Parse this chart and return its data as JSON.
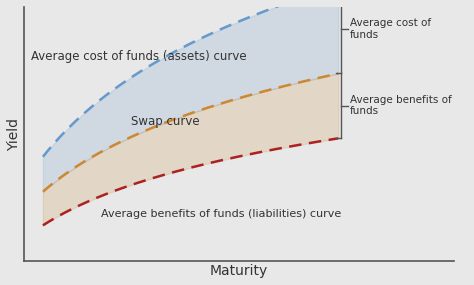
{
  "title": "",
  "xlabel": "Maturity",
  "ylabel": "Yield",
  "background_color": "#e8e8e8",
  "plot_bg_color": "#e8e8e8",
  "curve_top_color": "#6699cc",
  "curve_mid_color": "#cc8833",
  "curve_bot_color": "#aa2222",
  "curve_top_label": "Average cost of funds (assets) curve",
  "curve_mid_label": "Swap curve",
  "curve_bot_label": "Average benefits of funds (liabilities) curve",
  "right_label_top": "Average cost of\nfunds",
  "right_label_bot": "Average benefits of\nfunds",
  "label_fontsize": 8.5,
  "axis_label_fontsize": 10
}
